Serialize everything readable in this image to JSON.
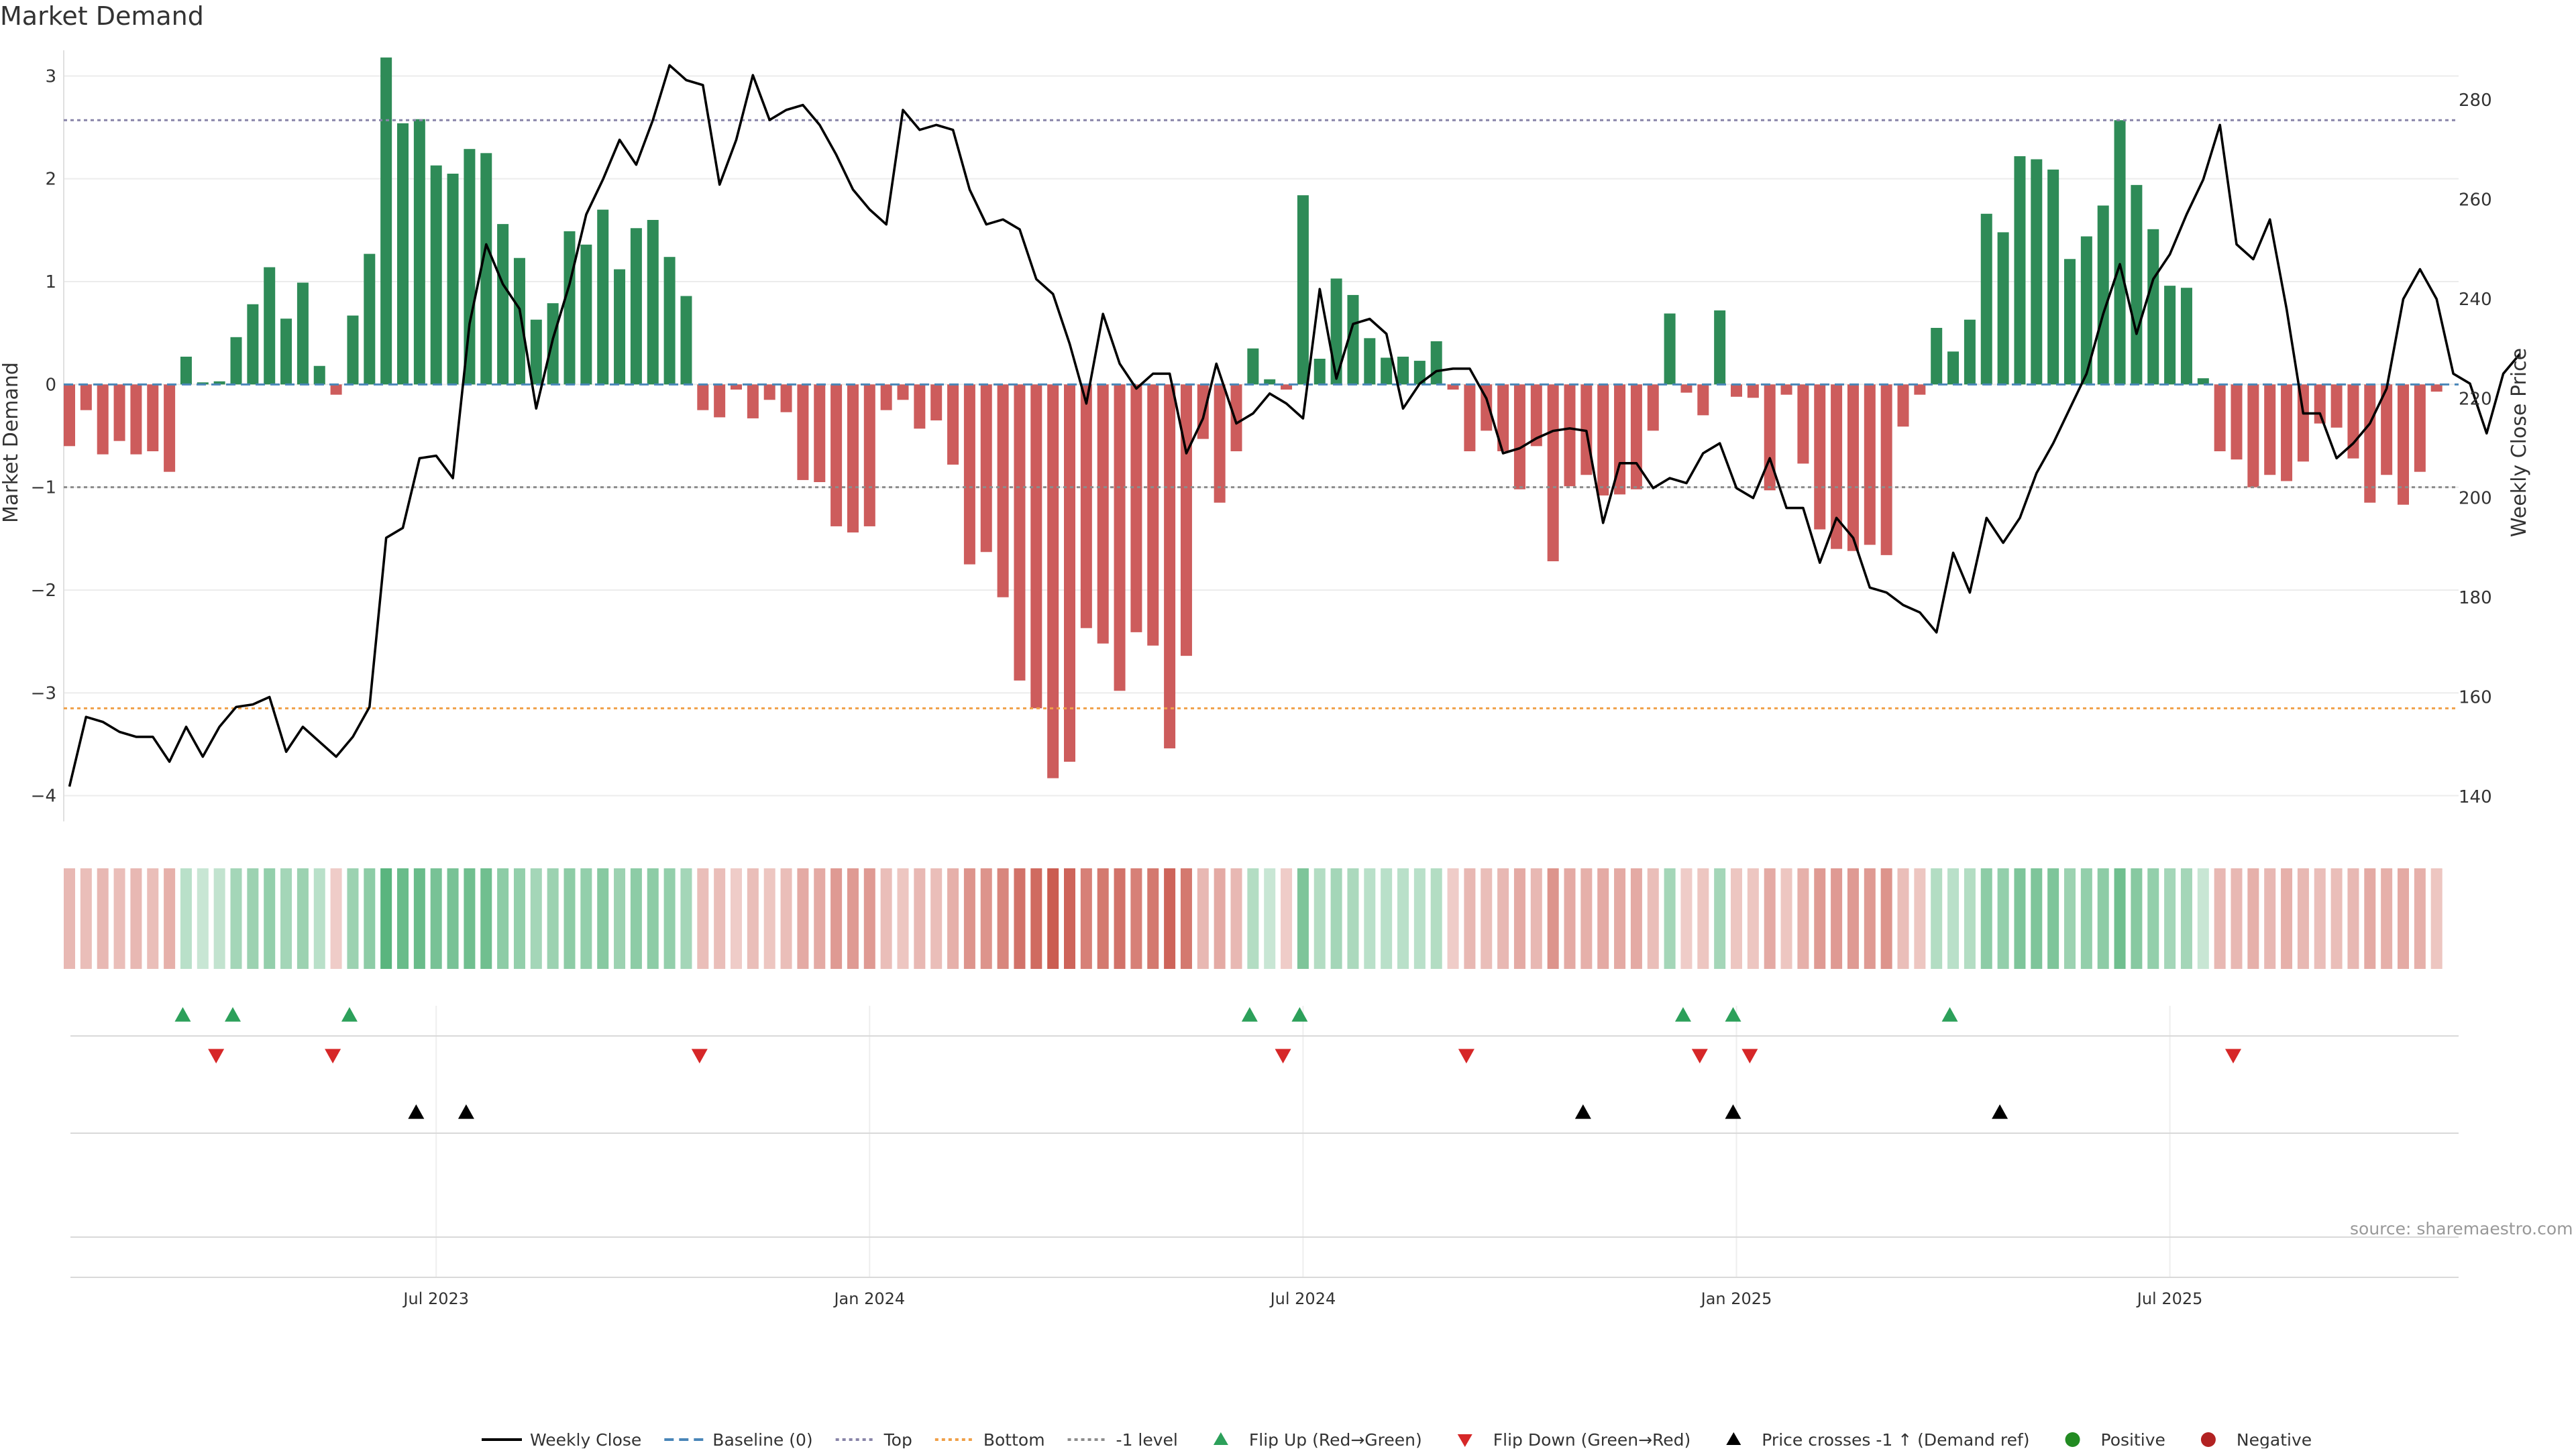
{
  "page": {
    "title": "Market Demand",
    "source": "source: sharemaestro.com"
  },
  "chart_data": {
    "type": "bar",
    "y_left_label": "Market Demand",
    "y_right_label": "Weekly Close Price",
    "y_left_range": [
      -4.25,
      3.25
    ],
    "y_left_ticks": [
      3,
      2,
      1,
      0,
      -1,
      -2,
      -3,
      -4
    ],
    "y_right_range": [
      135,
      290
    ],
    "y_right_ticks": [
      280,
      260,
      240,
      220,
      200,
      180,
      160,
      140
    ],
    "x_tick_labels": [
      "Jul 2023",
      "Jan 2024",
      "Jul 2024",
      "Jan 2025",
      "Jul 2025"
    ],
    "x_tick_weeks": [
      22,
      48,
      74,
      100,
      126
    ],
    "reference_lines": [
      {
        "name": "Top",
        "value": 2.57,
        "color": "#8884a8"
      },
      {
        "name": "Bottom",
        "value": -3.15,
        "color": "#f0a048"
      },
      {
        "name": "-1 level",
        "value": -1.0,
        "color": "#8c8c8c"
      }
    ],
    "demand_values": [
      -0.6,
      -0.25,
      -0.68,
      -0.55,
      -0.68,
      -0.65,
      -0.85,
      0.27,
      0.02,
      0.03,
      0.46,
      0.78,
      1.14,
      0.64,
      0.99,
      0.18,
      -0.1,
      0.67,
      1.27,
      3.18,
      2.54,
      2.58,
      2.13,
      2.05,
      2.29,
      2.25,
      1.56,
      1.23,
      0.63,
      0.79,
      1.49,
      1.36,
      1.7,
      1.12,
      1.52,
      1.6,
      1.24,
      0.86,
      -0.25,
      -0.32,
      -0.05,
      -0.33,
      -0.15,
      -0.27,
      -0.93,
      -0.95,
      -1.38,
      -1.44,
      -1.38,
      -0.25,
      -0.15,
      -0.43,
      -0.35,
      -0.78,
      -1.75,
      -1.63,
      -2.07,
      -2.88,
      -3.15,
      -3.83,
      -3.67,
      -2.37,
      -2.52,
      -2.98,
      -2.41,
      -2.54,
      -3.54,
      -2.64,
      -0.53,
      -1.15,
      -0.65,
      0.35,
      0.05,
      -0.05,
      1.84,
      0.25,
      1.03,
      0.87,
      0.45,
      0.26,
      0.27,
      0.23,
      0.42,
      -0.05,
      -0.65,
      -0.45,
      -0.65,
      -1.02,
      -0.6,
      -1.72,
      -0.99,
      -0.88,
      -1.08,
      -1.07,
      -1.02,
      -0.45,
      0.69,
      -0.08,
      -0.3,
      0.72,
      -0.12,
      -0.13,
      -1.03,
      -0.1,
      -0.77,
      -1.41,
      -1.6,
      -1.62,
      -1.56,
      -1.66,
      -0.41,
      -0.1,
      0.55,
      0.32,
      0.63,
      1.66,
      1.48,
      2.22,
      2.19,
      2.09,
      1.22,
      1.44,
      1.74,
      2.57,
      1.94,
      1.51,
      0.96,
      0.94,
      0.06,
      -0.65,
      -0.73,
      -1.0,
      -0.88,
      -0.94,
      -0.75,
      -0.38,
      -0.42,
      -0.72,
      -1.15,
      -0.88,
      -1.17,
      -0.85,
      -0.07
    ],
    "weekly_close": [
      [
        0,
        142
      ],
      [
        1,
        156
      ],
      [
        2,
        155
      ],
      [
        3,
        153
      ],
      [
        4,
        152
      ],
      [
        5,
        152
      ],
      [
        6,
        147
      ],
      [
        7,
        154
      ],
      [
        8,
        148
      ],
      [
        9,
        154
      ],
      [
        10,
        158
      ],
      [
        11,
        158.5
      ],
      [
        12,
        160
      ],
      [
        13,
        149
      ],
      [
        14,
        154
      ],
      [
        15,
        151
      ],
      [
        16,
        148
      ],
      [
        17,
        152
      ],
      [
        18,
        158
      ],
      [
        19,
        192
      ],
      [
        20,
        194
      ],
      [
        21,
        208
      ],
      [
        22,
        208.5
      ],
      [
        23,
        204
      ],
      [
        24,
        235
      ],
      [
        25,
        251
      ],
      [
        26,
        243
      ],
      [
        27,
        238
      ],
      [
        28,
        218
      ],
      [
        29,
        232
      ],
      [
        30,
        243
      ],
      [
        31,
        257
      ],
      [
        32,
        264
      ],
      [
        33,
        272
      ],
      [
        34,
        267
      ],
      [
        35,
        276
      ],
      [
        36,
        287
      ],
      [
        37,
        284
      ],
      [
        38,
        283
      ],
      [
        39,
        263
      ],
      [
        40,
        272
      ],
      [
        41,
        285
      ],
      [
        42,
        276
      ],
      [
        43,
        278
      ],
      [
        44,
        279
      ],
      [
        45,
        275
      ],
      [
        46,
        269
      ],
      [
        47,
        262
      ],
      [
        48,
        258
      ],
      [
        49,
        255
      ],
      [
        50,
        278
      ],
      [
        51,
        274
      ],
      [
        52,
        275
      ],
      [
        53,
        274
      ],
      [
        54,
        262
      ],
      [
        55,
        255
      ],
      [
        56,
        256
      ],
      [
        57,
        254
      ],
      [
        58,
        244
      ],
      [
        59,
        241
      ],
      [
        60,
        231
      ],
      [
        61,
        219
      ],
      [
        62,
        237
      ],
      [
        63,
        227
      ],
      [
        64,
        222
      ],
      [
        65,
        225
      ],
      [
        66,
        225
      ],
      [
        67,
        209
      ],
      [
        68,
        216
      ],
      [
        68.8,
        227
      ],
      [
        70,
        215
      ],
      [
        71,
        217
      ],
      [
        72,
        221
      ],
      [
        73,
        219
      ],
      [
        74,
        216
      ],
      [
        75,
        242
      ],
      [
        76,
        224
      ],
      [
        77,
        235
      ],
      [
        78,
        236
      ],
      [
        79,
        233
      ],
      [
        80,
        218
      ],
      [
        81,
        223
      ],
      [
        82,
        225.5
      ],
      [
        83,
        226
      ],
      [
        84,
        226
      ],
      [
        85,
        220
      ],
      [
        86,
        209
      ],
      [
        87,
        210
      ],
      [
        88,
        212
      ],
      [
        89,
        213.5
      ],
      [
        90,
        214
      ],
      [
        91,
        213.5
      ],
      [
        92,
        195
      ],
      [
        93,
        207
      ],
      [
        94,
        207
      ],
      [
        95,
        202
      ],
      [
        96,
        204
      ],
      [
        97,
        203
      ],
      [
        98,
        209
      ],
      [
        99,
        211
      ],
      [
        100,
        202
      ],
      [
        101,
        200
      ],
      [
        102,
        208
      ],
      [
        103,
        198
      ],
      [
        104,
        198
      ],
      [
        105,
        187
      ],
      [
        106,
        196
      ],
      [
        107,
        192
      ],
      [
        108,
        182
      ],
      [
        109,
        181
      ],
      [
        110,
        178.5
      ],
      [
        111,
        177
      ],
      [
        112,
        173
      ],
      [
        113,
        189
      ],
      [
        114,
        181
      ],
      [
        115,
        196
      ],
      [
        116,
        191
      ],
      [
        117,
        196
      ],
      [
        118,
        205
      ],
      [
        119,
        211
      ],
      [
        120,
        218
      ],
      [
        121,
        225
      ],
      [
        122,
        237
      ],
      [
        123,
        247
      ],
      [
        124,
        233
      ],
      [
        125,
        244
      ],
      [
        126,
        249
      ],
      [
        127,
        257
      ],
      [
        128,
        264
      ],
      [
        129,
        275
      ],
      [
        130,
        251
      ],
      [
        131,
        248
      ],
      [
        132,
        256
      ],
      [
        133,
        238
      ],
      [
        134,
        217
      ],
      [
        135,
        217
      ],
      [
        136,
        208
      ],
      [
        137,
        211
      ],
      [
        138,
        215
      ],
      [
        139,
        222
      ],
      [
        140,
        240
      ],
      [
        141,
        246
      ],
      [
        142,
        240
      ],
      [
        143,
        225
      ],
      [
        144,
        223
      ],
      [
        145,
        213
      ],
      [
        146,
        225
      ],
      [
        147,
        229
      ]
    ],
    "demand_strip_intensity": [
      0.35,
      0.3,
      0.35,
      0.3,
      0.35,
      0.3,
      0.4,
      0.3,
      0.2,
      0.25,
      0.45,
      0.5,
      0.55,
      0.45,
      0.5,
      0.3,
      0.2,
      0.5,
      0.6,
      0.95,
      0.85,
      0.85,
      0.75,
      0.75,
      0.8,
      0.8,
      0.6,
      0.55,
      0.45,
      0.5,
      0.6,
      0.55,
      0.65,
      0.5,
      0.6,
      0.6,
      0.55,
      0.45,
      0.3,
      0.3,
      0.2,
      0.3,
      0.25,
      0.3,
      0.45,
      0.45,
      0.55,
      0.55,
      0.55,
      0.3,
      0.25,
      0.35,
      0.3,
      0.4,
      0.6,
      0.6,
      0.7,
      0.85,
      0.9,
      1.0,
      0.95,
      0.75,
      0.8,
      0.85,
      0.75,
      0.8,
      0.95,
      0.8,
      0.35,
      0.45,
      0.35,
      0.35,
      0.2,
      0.2,
      0.7,
      0.35,
      0.45,
      0.4,
      0.3,
      0.3,
      0.3,
      0.3,
      0.35,
      0.2,
      0.35,
      0.3,
      0.35,
      0.45,
      0.35,
      0.6,
      0.45,
      0.4,
      0.45,
      0.45,
      0.45,
      0.3,
      0.45,
      0.2,
      0.25,
      0.45,
      0.25,
      0.25,
      0.45,
      0.25,
      0.4,
      0.55,
      0.55,
      0.55,
      0.55,
      0.6,
      0.3,
      0.25,
      0.35,
      0.3,
      0.35,
      0.6,
      0.55,
      0.7,
      0.7,
      0.7,
      0.5,
      0.55,
      0.6,
      0.8,
      0.65,
      0.55,
      0.45,
      0.45,
      0.2,
      0.35,
      0.35,
      0.4,
      0.35,
      0.4,
      0.35,
      0.3,
      0.3,
      0.35,
      0.45,
      0.4,
      0.45,
      0.4,
      0.25
    ],
    "flip_up_weeks": [
      7,
      10,
      17,
      71,
      74,
      97,
      100,
      113
    ],
    "flip_down_weeks": [
      9,
      16,
      38,
      73,
      84,
      98,
      101,
      130
    ],
    "price_cross_weeks": [
      21,
      24,
      91,
      100,
      116
    ],
    "legend": [
      {
        "label": "Weekly Close",
        "type": "line",
        "color": "#000000"
      },
      {
        "label": "Baseline (0)",
        "type": "dash",
        "color": "#4a86b8"
      },
      {
        "label": "Top",
        "type": "dot",
        "color": "#8884a8"
      },
      {
        "label": "Bottom",
        "type": "dot",
        "color": "#f0a048"
      },
      {
        "label": "-1 level",
        "type": "dot",
        "color": "#8c8c8c"
      },
      {
        "label": "Flip Up (Red→Green)",
        "type": "tri-up",
        "color": "#2ca05a"
      },
      {
        "label": "Flip Down (Green→Red)",
        "type": "tri-down",
        "color": "#d62728"
      },
      {
        "label": "Price crosses -1 ↑ (Demand ref)",
        "type": "tri-up",
        "color": "#000000"
      },
      {
        "label": "Positive",
        "type": "dot-circle",
        "color": "#228b22"
      },
      {
        "label": "Negative",
        "type": "dot-circle",
        "color": "#b22222"
      }
    ],
    "colors": {
      "positive_bar": "#2e8b57",
      "negative_bar": "#cd5c5c",
      "price_line": "#000000",
      "flip_up": "#2ca05a",
      "flip_down": "#d62728",
      "cross": "#000000"
    }
  }
}
